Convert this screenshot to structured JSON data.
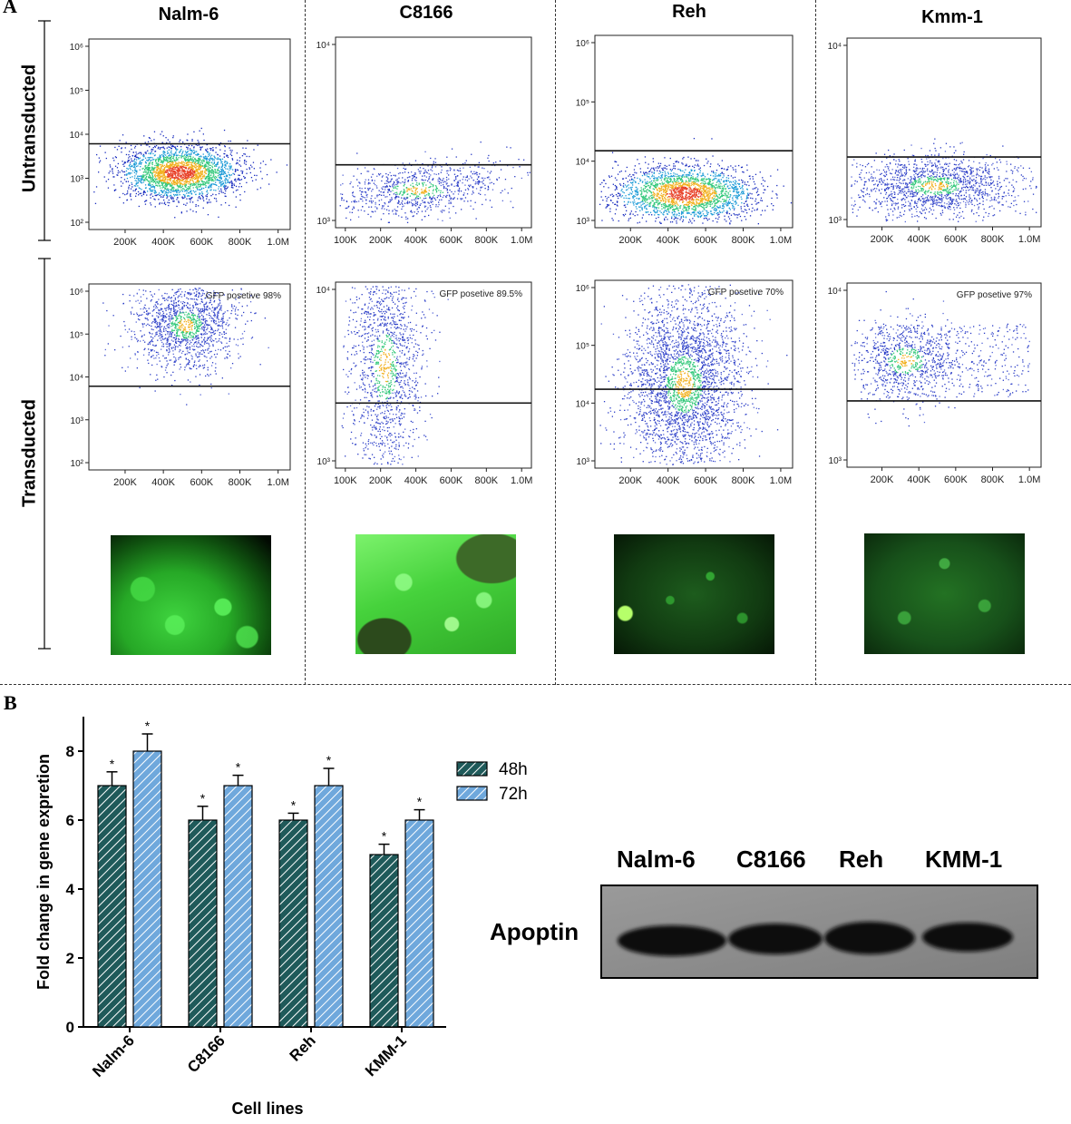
{
  "panel_a_label": "A",
  "panel_b_label": "B",
  "columns": [
    "Nalm-6",
    "C8166",
    "Reh",
    "Kmm-1"
  ],
  "rows": [
    "Untransducted",
    "Transducted"
  ],
  "flow_plots": [
    {
      "cell": "Nalm-6",
      "row": "Untransducted",
      "y_ticks": [
        "10²",
        "10³",
        "10⁴",
        "10⁵",
        "10⁶"
      ],
      "x_ticks": [
        "200K",
        "400K",
        "600K",
        "800K",
        "1.0M"
      ],
      "gate_label": ""
    },
    {
      "cell": "C8166",
      "row": "Untransducted",
      "y_ticks": [
        "10³",
        "10⁴"
      ],
      "x_ticks": [
        "100K",
        "200K",
        "400K",
        "600K",
        "800K",
        "1.0M"
      ],
      "gate_label": ""
    },
    {
      "cell": "Reh",
      "row": "Untransducted",
      "y_ticks": [
        "10³",
        "10⁴",
        "10⁵",
        "10⁶"
      ],
      "x_ticks": [
        "200K",
        "400K",
        "600K",
        "800K",
        "1.0M"
      ],
      "gate_label": ""
    },
    {
      "cell": "Kmm-1",
      "row": "Untransducted",
      "y_ticks": [
        "10³",
        "10⁴"
      ],
      "x_ticks": [
        "200K",
        "400K",
        "600K",
        "800K",
        "1.0M"
      ],
      "gate_label": ""
    },
    {
      "cell": "Nalm-6",
      "row": "Transducted",
      "y_ticks": [
        "10²",
        "10³",
        "10⁴",
        "10⁵",
        "10⁶"
      ],
      "x_ticks": [
        "200K",
        "400K",
        "600K",
        "800K",
        "1.0M"
      ],
      "gate_label": "GFP posetive 98%"
    },
    {
      "cell": "C8166",
      "row": "Transducted",
      "y_ticks": [
        "10³",
        "10⁴"
      ],
      "x_ticks": [
        "100K",
        "200K",
        "400K",
        "600K",
        "800K",
        "1.0M"
      ],
      "gate_label": "GFP posetive 89.5%"
    },
    {
      "cell": "Reh",
      "row": "Transducted",
      "y_ticks": [
        "10³",
        "10⁴",
        "10⁵",
        "10⁶"
      ],
      "x_ticks": [
        "200K",
        "400K",
        "600K",
        "800K",
        "1.0M"
      ],
      "gate_label": "GFP posetive 70%"
    },
    {
      "cell": "Kmm-1",
      "row": "Transducted",
      "y_ticks": [
        "10³",
        "10⁴"
      ],
      "x_ticks": [
        "200K",
        "400K",
        "600K",
        "800K",
        "1.0M"
      ],
      "gate_label": "GFP posetive 97%"
    }
  ],
  "western_blot": {
    "lanes": [
      "Nalm-6",
      "C8166",
      "Reh",
      "KMM-1"
    ],
    "protein": "Apoptin"
  },
  "chart_data": {
    "type": "bar",
    "categories": [
      "Nalm-6",
      "C8166",
      "Reh",
      "KMM-1"
    ],
    "series": [
      {
        "name": "48h",
        "values": [
          7,
          6,
          6,
          5
        ],
        "errors": [
          0.4,
          0.4,
          0.2,
          0.3
        ],
        "significance": [
          "*",
          "*",
          "*",
          "*"
        ],
        "color": "#1f5a5a"
      },
      {
        "name": "72h",
        "values": [
          8,
          7,
          7,
          6
        ],
        "errors": [
          0.5,
          0.3,
          0.5,
          0.3
        ],
        "significance": [
          "*",
          "*",
          "*",
          "*"
        ],
        "color": "#6fa8dc"
      }
    ],
    "xlabel": "Cell lines",
    "ylabel": "Fold change in gene expretion",
    "ylim": [
      0,
      9
    ],
    "yticks": [
      0,
      2,
      4,
      6,
      8
    ],
    "legend_position": "top-right"
  }
}
